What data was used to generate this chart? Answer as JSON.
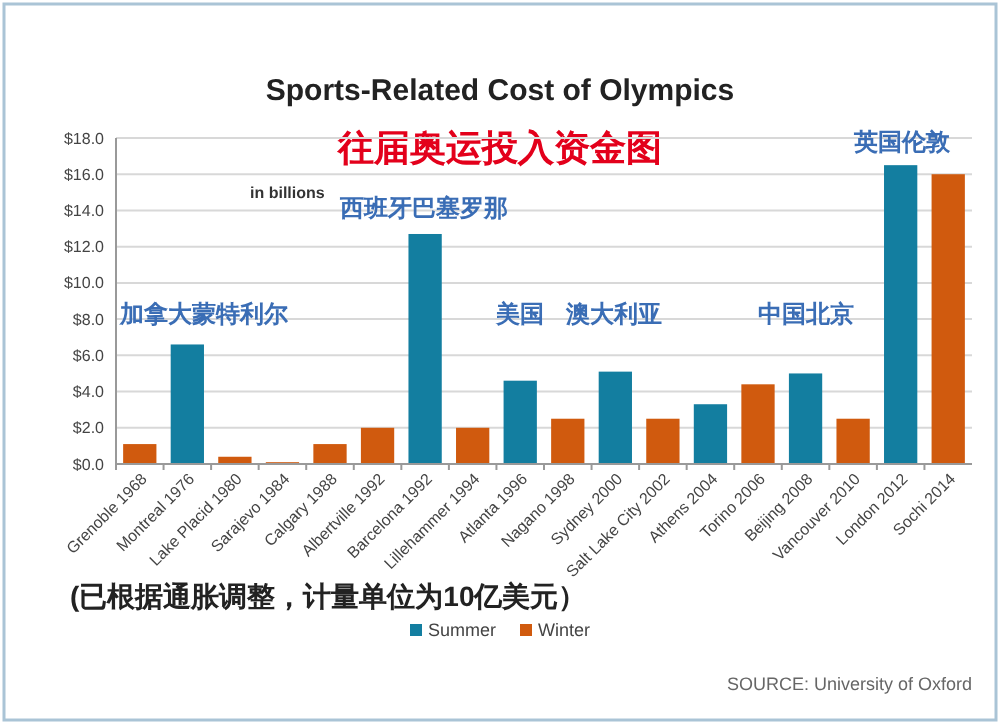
{
  "chart_data": {
    "type": "bar",
    "title": "Sports-Related Cost of Olympics",
    "subtitle": "往届奥运投入资金图",
    "categories": [
      "Grenoble 1968",
      "Montreal 1976",
      "Lake Placid 1980",
      "Sarajevo 1984",
      "Calgary 1988",
      "Albertville 1992",
      "Barcelona 1992",
      "Lillehammer 1994",
      "Atlanta 1996",
      "Nagano 1998",
      "Sydney 2000",
      "Salt Lake City 2002",
      "Athens 2004",
      "Torino 2006",
      "Beijing 2008",
      "Vancouver 2010",
      "London 2012",
      "Sochi 2014"
    ],
    "series": [
      {
        "name": "Summer",
        "color": "#137ea0",
        "values": [
          null,
          6.6,
          null,
          null,
          null,
          null,
          12.7,
          null,
          4.6,
          null,
          5.1,
          null,
          3.3,
          null,
          5.0,
          null,
          16.5,
          null
        ]
      },
      {
        "name": "Winter",
        "color": "#d05a0e",
        "values": [
          1.1,
          null,
          0.4,
          0.1,
          1.1,
          2.0,
          null,
          2.0,
          null,
          2.5,
          null,
          2.5,
          null,
          4.4,
          null,
          2.5,
          null,
          16.0
        ]
      }
    ],
    "ylim": [
      0,
      18
    ],
    "yticks": [
      {
        "value": 0,
        "label": "$0.0"
      },
      {
        "value": 2,
        "label": "$2.0"
      },
      {
        "value": 4,
        "label": "$4.0"
      },
      {
        "value": 6,
        "label": "$6.0"
      },
      {
        "value": 8,
        "label": "$8.0"
      },
      {
        "value": 10,
        "label": "$10.0"
      },
      {
        "value": 12,
        "label": "$12.0"
      },
      {
        "value": 14,
        "label": "$14.0"
      },
      {
        "value": 16,
        "label": "$16.0"
      },
      {
        "value": 18,
        "label": "$18.0"
      }
    ],
    "grid": "y",
    "legend": "bottom",
    "annotations": [
      "in billions",
      "加拿大蒙特利尔",
      "西班牙巴塞罗那",
      "美国",
      "澳大利亚",
      "中国北京",
      "英国伦敦",
      "(已根据通胀调整，计量单位为10亿美元）",
      "SOURCE: University of Oxford"
    ]
  }
}
